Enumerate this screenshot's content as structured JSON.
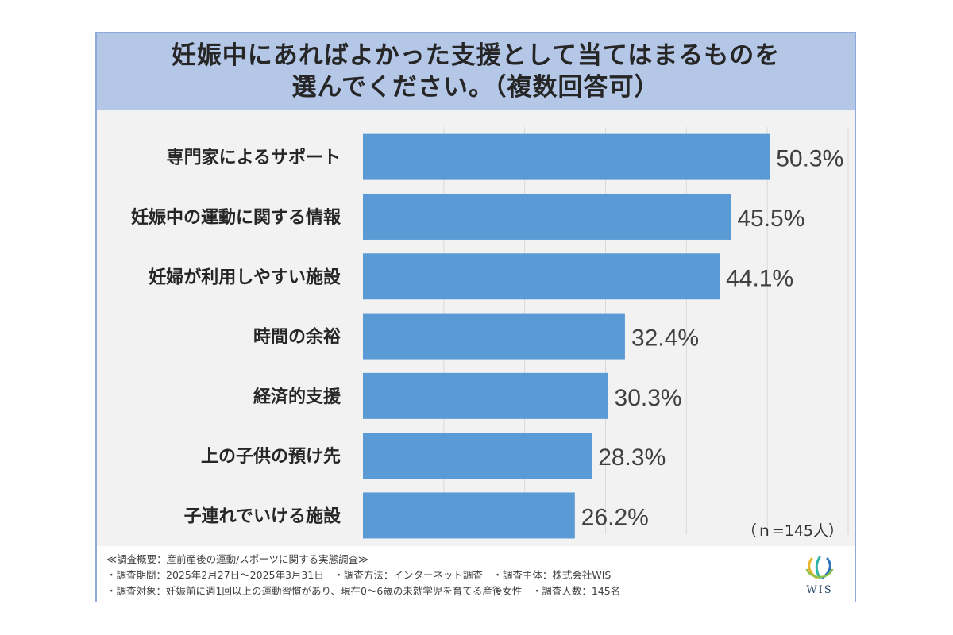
{
  "chart_data": {
    "type": "bar",
    "orientation": "horizontal",
    "title_lines": [
      "妊娠中にあればよかった支援として当てはまるものを",
      "選んでください。（複数回答可）"
    ],
    "categories": [
      "専門家によるサポート",
      "妊娠中の運動に関する情報",
      "妊婦が利用しやすい施設",
      "時間の余裕",
      "経済的支援",
      "上の子供の預け先",
      "子連れでいける施設"
    ],
    "values": [
      50.3,
      45.5,
      44.1,
      32.4,
      30.3,
      28.3,
      26.2
    ],
    "value_labels": [
      "50.3%",
      "45.5%",
      "44.1%",
      "32.4%",
      "30.3%",
      "28.3%",
      "26.2%"
    ],
    "unit": "%",
    "xlim": [
      0,
      60
    ],
    "grid": true,
    "sample_note": "（ｎ=145人）",
    "colors": {
      "bar": "#5b9bd5",
      "title_band": "#b4c7e7",
      "plot_bg": "#f2f2f2",
      "grid": "#d9d9d9",
      "frame": "#8eaadb"
    }
  },
  "footer": {
    "lines": [
      "≪調査概要：産前産後の運動/スポーツに関する実態調査≫",
      "・調査期間：2025年2月27日～2025年3月31日　・調査方法：インターネット調査　・調査主体：株式会社WIS",
      "・調査対象：妊娠前に週1回以上の運動習慣があり、現在0～6歳の未就学児を育てる産後女性　・調査人数：145名"
    ]
  },
  "logo": {
    "text": "WIS",
    "icon": "wis-wave-logo-icon"
  }
}
